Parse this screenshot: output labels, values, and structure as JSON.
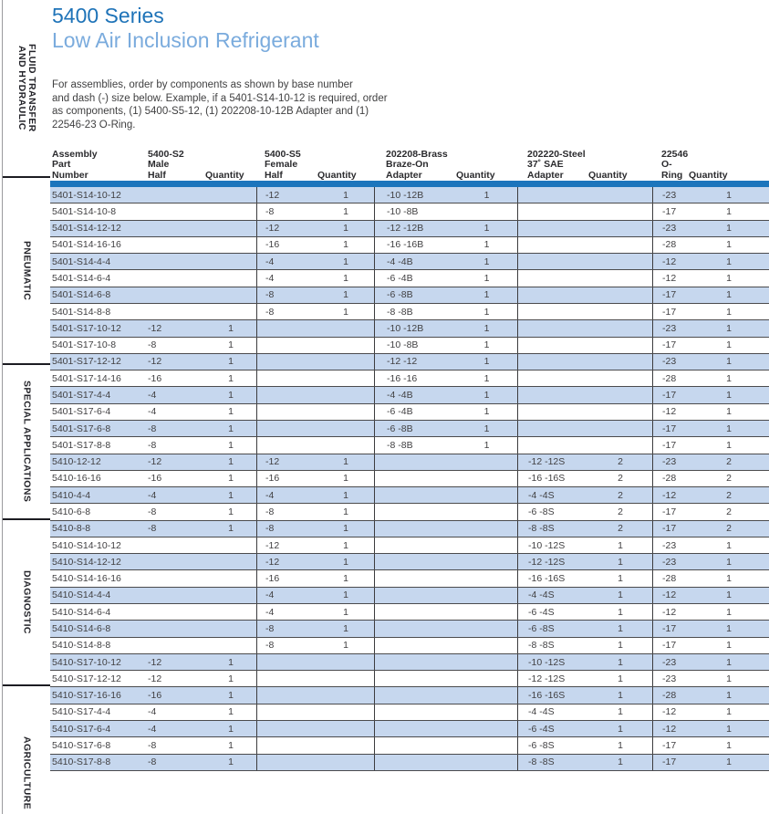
{
  "page": {
    "title": "5400 Series",
    "subtitle": "Low Air Inclusion Refrigerant",
    "description": "For assemblies, order by components as shown by base number\nand dash (-) size below. Example, if a 5401-S14-10-12 is required, order\nas components, (1) 5400-S5-12, (1) 202208-10-12B Adapter and (1)\n22546-23 O-Ring.",
    "colors": {
      "title_blue": "#1e73b8",
      "subtitle_blue": "#7aabdd",
      "header_bar_blue": "#1c75bc",
      "row_alt_blue": "#c6d7ee"
    }
  },
  "sidebar": {
    "sections": [
      {
        "label": "FLUID TRANSFER\nAND HYDRAULIC"
      },
      {
        "label": "PNEUMATIC"
      },
      {
        "label": "SPECIAL APPLICATIONS"
      },
      {
        "label": "DIAGNOSTIC"
      },
      {
        "label": "AGRICULTURE"
      }
    ]
  },
  "table": {
    "headers": [
      "Assembly\nPart\nNumber",
      "5400-S2\nMale\nHalf",
      "Quantity",
      "5400-S5\nFemale\nHalf",
      "Quantity",
      "202208-Brass\nBraze-On\nAdapter",
      "Quantity",
      "202220-Steel\n37˚ SAE\nAdapter",
      "Quantity",
      "22546\nO-Ring",
      "Quantity"
    ],
    "cell_names": [
      "assembly-part-number",
      "male-half-size",
      "male-half-qty",
      "female-half-size",
      "female-half-qty",
      "brass-adapter-size",
      "brass-adapter-qty",
      "steel-adapter-size",
      "steel-adapter-qty",
      "o-ring-size",
      "o-ring-qty"
    ],
    "rows": [
      [
        "5401-S14-10-12",
        "",
        "",
        "-12",
        "1",
        "-10 -12B",
        "1",
        "",
        "",
        "-23",
        "1"
      ],
      [
        "5401-S14-10-8",
        "",
        "",
        "-8",
        "1",
        "-10 -8B",
        "",
        "",
        "",
        "-17",
        "1"
      ],
      [
        "5401-S14-12-12",
        "",
        "",
        "-12",
        "1",
        "-12 -12B",
        "1",
        "",
        "",
        "-23",
        "1"
      ],
      [
        "5401-S14-16-16",
        "",
        "",
        "-16",
        "1",
        "-16 -16B",
        "1",
        "",
        "",
        "-28",
        "1"
      ],
      [
        "5401-S14-4-4",
        "",
        "",
        "-4",
        "1",
        "-4 -4B",
        "1",
        "",
        "",
        "-12",
        "1"
      ],
      [
        "5401-S14-6-4",
        "",
        "",
        "-4",
        "1",
        "-6 -4B",
        "1",
        "",
        "",
        "-12",
        "1"
      ],
      [
        "5401-S14-6-8",
        "",
        "",
        "-8",
        "1",
        "-6 -8B",
        "1",
        "",
        "",
        "-17",
        "1"
      ],
      [
        "5401-S14-8-8",
        "",
        "",
        "-8",
        "1",
        "-8 -8B",
        "1",
        "",
        "",
        "-17",
        "1"
      ],
      [
        "5401-S17-10-12",
        "-12",
        "1",
        "",
        "",
        "-10 -12B",
        "1",
        "",
        "",
        "-23",
        "1"
      ],
      [
        "5401-S17-10-8",
        "-8",
        "1",
        "",
        "",
        "-10 -8B",
        "1",
        "",
        "",
        "-17",
        "1"
      ],
      [
        "5401-S17-12-12",
        "-12",
        "1",
        "",
        "",
        "-12 -12",
        "1",
        "",
        "",
        "-23",
        "1"
      ],
      [
        "5401-S17-14-16",
        "-16",
        "1",
        "",
        "",
        "-16 -16",
        "1",
        "",
        "",
        "-28",
        "1"
      ],
      [
        "5401-S17-4-4",
        "-4",
        "1",
        "",
        "",
        "-4 -4B",
        "1",
        "",
        "",
        "-17",
        "1"
      ],
      [
        "5401-S17-6-4",
        "-4",
        "1",
        "",
        "",
        "-6 -4B",
        "1",
        "",
        "",
        "-12",
        "1"
      ],
      [
        "5401-S17-6-8",
        "-8",
        "1",
        "",
        "",
        "-6 -8B",
        "1",
        "",
        "",
        "-17",
        "1"
      ],
      [
        "5401-S17-8-8",
        "-8",
        "1",
        "",
        "",
        "-8 -8B",
        "1",
        "",
        "",
        "-17",
        "1"
      ],
      [
        "5410-12-12",
        "-12",
        "1",
        "-12",
        "1",
        "",
        "",
        "-12 -12S",
        "2",
        "-23",
        "2"
      ],
      [
        "5410-16-16",
        "-16",
        "1",
        "-16",
        "1",
        "",
        "",
        "-16 -16S",
        "2",
        "-28",
        "2"
      ],
      [
        "5410-4-4",
        "-4",
        "1",
        "-4",
        "1",
        "",
        "",
        "-4 -4S",
        "2",
        "-12",
        "2"
      ],
      [
        "5410-6-8",
        "-8",
        "1",
        "-8",
        "1",
        "",
        "",
        "-6 -8S",
        "2",
        "-17",
        "2"
      ],
      [
        "5410-8-8",
        "-8",
        "1",
        "-8",
        "1",
        "",
        "",
        "-8 -8S",
        "2",
        "-17",
        "2"
      ],
      [
        "5410-S14-10-12",
        "",
        "",
        "-12",
        "1",
        "",
        "",
        "-10 -12S",
        "1",
        "-23",
        "1"
      ],
      [
        "5410-S14-12-12",
        "",
        "",
        "-12",
        "1",
        "",
        "",
        "-12 -12S",
        "1",
        "-23",
        "1"
      ],
      [
        "5410-S14-16-16",
        "",
        "",
        "-16",
        "1",
        "",
        "",
        "-16 -16S",
        "1",
        "-28",
        "1"
      ],
      [
        "5410-S14-4-4",
        "",
        "",
        "-4",
        "1",
        "",
        "",
        "-4 -4S",
        "1",
        "-12",
        "1"
      ],
      [
        "5410-S14-6-4",
        "",
        "",
        "-4",
        "1",
        "",
        "",
        "-6 -4S",
        "1",
        "-12",
        "1"
      ],
      [
        "5410-S14-6-8",
        "",
        "",
        "-8",
        "1",
        "",
        "",
        "-6 -8S",
        "1",
        "-17",
        "1"
      ],
      [
        "5410-S14-8-8",
        "",
        "",
        "-8",
        "1",
        "",
        "",
        "-8 -8S",
        "1",
        "-17",
        "1"
      ],
      [
        "5410-S17-10-12",
        "-12",
        "1",
        "",
        "",
        "",
        "",
        "-10 -12S",
        "1",
        "-23",
        "1"
      ],
      [
        "5410-S17-12-12",
        "-12",
        "1",
        "",
        "",
        "",
        "",
        "-12 -12S",
        "1",
        "-23",
        "1"
      ],
      [
        "5410-S17-16-16",
        "-16",
        "1",
        "",
        "",
        "",
        "",
        "-16 -16S",
        "1",
        "-28",
        "1"
      ],
      [
        "5410-S17-4-4",
        "-4",
        "1",
        "",
        "",
        "",
        "",
        "-4 -4S",
        "1",
        "-12",
        "1"
      ],
      [
        "5410-S17-6-4",
        "-4",
        "1",
        "",
        "",
        "",
        "",
        "-6 -4S",
        "1",
        "-12",
        "1"
      ],
      [
        "5410-S17-6-8",
        "-8",
        "1",
        "",
        "",
        "",
        "",
        "-6 -8S",
        "1",
        "-17",
        "1"
      ],
      [
        "5410-S17-8-8",
        "-8",
        "1",
        "",
        "",
        "",
        "",
        "-8 -8S",
        "1",
        "-17",
        "1"
      ]
    ]
  }
}
